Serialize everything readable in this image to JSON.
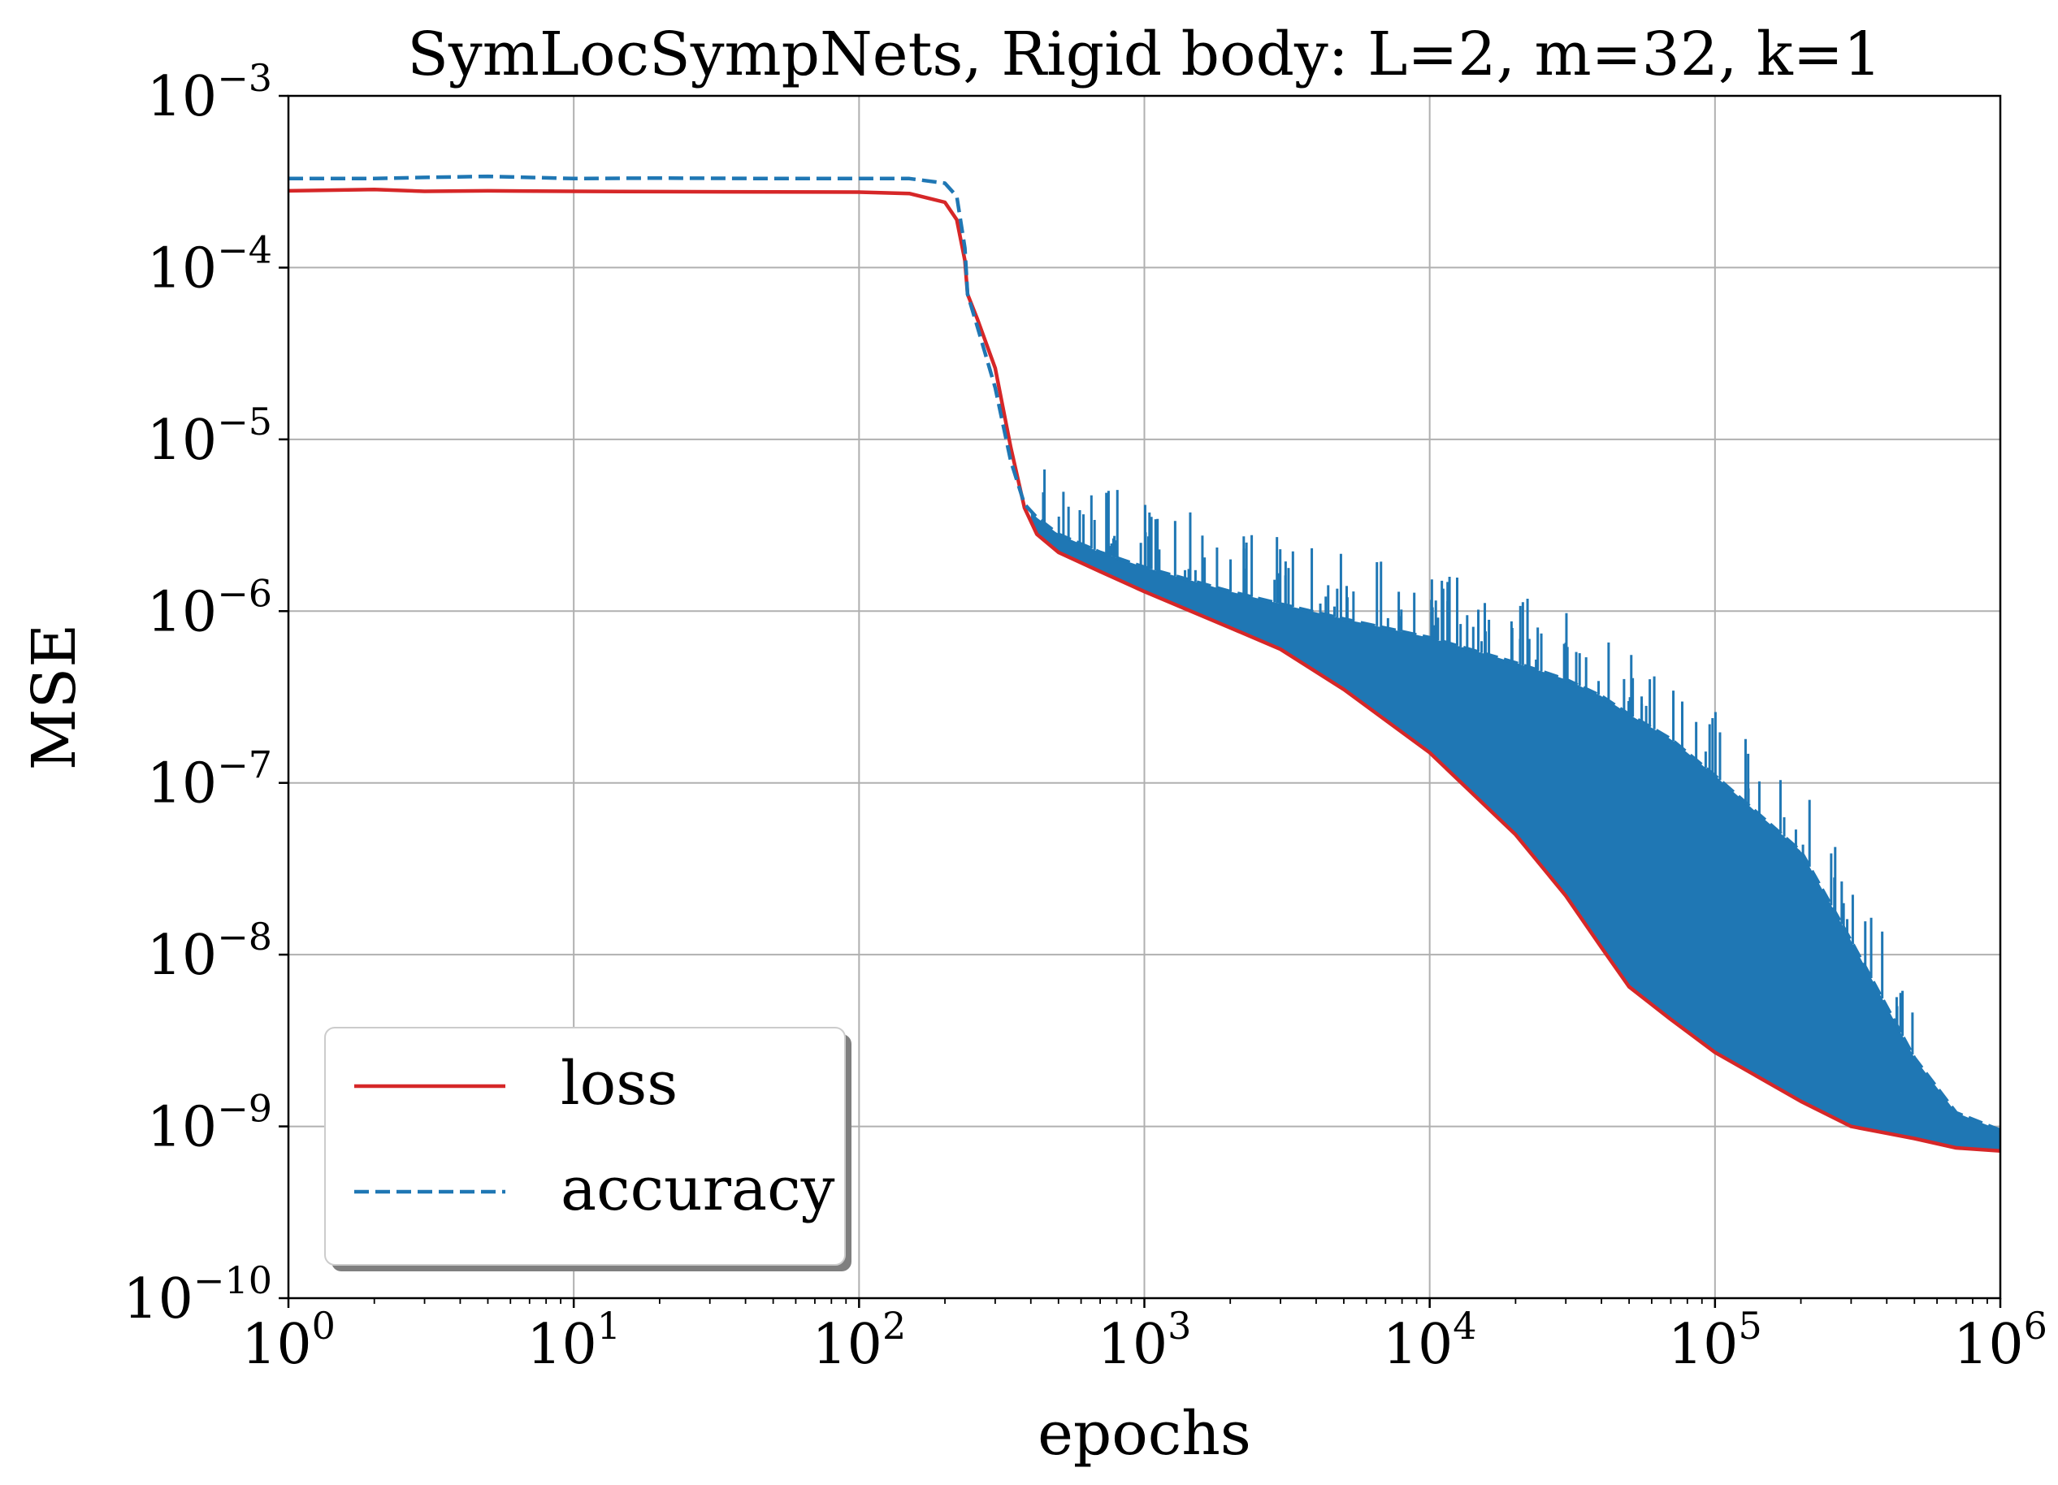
{
  "chart_data": {
    "type": "line",
    "title": "SymLocSympNets, Rigid body: L=2, m=32, k=1",
    "xlabel": "epochs",
    "ylabel": "MSE",
    "xscale": "log",
    "yscale": "log",
    "xlim": [
      1,
      1000000
    ],
    "ylim": [
      1e-10,
      0.001
    ],
    "grid": true,
    "legend_position": "lower-left",
    "x_ticks": [
      {
        "value": 1,
        "base": "10",
        "exp": "0"
      },
      {
        "value": 10,
        "base": "10",
        "exp": "1"
      },
      {
        "value": 100,
        "base": "10",
        "exp": "2"
      },
      {
        "value": 1000,
        "base": "10",
        "exp": "3"
      },
      {
        "value": 10000,
        "base": "10",
        "exp": "4"
      },
      {
        "value": 100000,
        "base": "10",
        "exp": "5"
      },
      {
        "value": 1000000,
        "base": "10",
        "exp": "6"
      }
    ],
    "y_ticks": [
      {
        "value": 1e-10,
        "base": "10",
        "exp": "−10"
      },
      {
        "value": 1e-09,
        "base": "10",
        "exp": "−9"
      },
      {
        "value": 1e-08,
        "base": "10",
        "exp": "−8"
      },
      {
        "value": 1e-07,
        "base": "10",
        "exp": "−7"
      },
      {
        "value": 1e-06,
        "base": "10",
        "exp": "−6"
      },
      {
        "value": 1e-05,
        "base": "10",
        "exp": "−5"
      },
      {
        "value": 0.0001,
        "base": "10",
        "exp": "−4"
      },
      {
        "value": 0.001,
        "base": "10",
        "exp": "−3"
      }
    ],
    "series": [
      {
        "name": "loss",
        "color": "#d62728",
        "style": "solid",
        "x": [
          1,
          2,
          3,
          5,
          10,
          20,
          50,
          100,
          150,
          200,
          220,
          235,
          240,
          260,
          300,
          340,
          380,
          420,
          500,
          700,
          1000,
          2000,
          3000,
          5000,
          10000,
          20000,
          30000,
          40000,
          50000,
          70000,
          100000,
          200000,
          300000,
          500000,
          700000,
          1000000
        ],
        "y": [
          0.00028,
          0.000285,
          0.000278,
          0.00028,
          0.000278,
          0.000277,
          0.000276,
          0.000275,
          0.00027,
          0.00024,
          0.00019,
          0.00011,
          7e-05,
          5e-05,
          2.6e-05,
          9e-06,
          4e-06,
          2.8e-06,
          2.2e-06,
          1.7e-06,
          1.3e-06,
          8e-07,
          6e-07,
          3.5e-07,
          1.5e-07,
          5e-08,
          2.2e-08,
          1.1e-08,
          6.5e-09,
          4.2e-09,
          2.7e-09,
          1.4e-09,
          1e-09,
          8.5e-10,
          7.5e-10,
          7.2e-10
        ]
      },
      {
        "name": "accuracy",
        "color": "#1f77b4",
        "style": "dashed",
        "x": [
          1,
          2,
          3,
          5,
          10,
          20,
          50,
          100,
          150,
          200,
          220,
          235,
          240,
          260,
          300,
          340,
          380,
          420,
          500,
          700,
          1000,
          2000,
          3000,
          5000,
          10000,
          20000,
          30000,
          40000,
          50000,
          70000,
          100000,
          200000,
          300000,
          500000,
          700000,
          1000000
        ],
        "y": [
          0.00033,
          0.00033,
          0.000335,
          0.00034,
          0.00033,
          0.000332,
          0.00033,
          0.00033,
          0.00033,
          0.00031,
          0.00026,
          0.00013,
          7e-05,
          4.5e-05,
          2e-05,
          7.5e-06,
          4.2e-06,
          3.5e-06,
          2.8e-06,
          2.2e-06,
          1.8e-06,
          1.3e-06,
          1.1e-06,
          9e-07,
          7e-07,
          5e-07,
          4e-07,
          3.2e-07,
          2.5e-07,
          1.8e-07,
          1.1e-07,
          4e-08,
          1.2e-08,
          2.5e-09,
          1.2e-09,
          9.5e-10
        ]
      }
    ]
  }
}
